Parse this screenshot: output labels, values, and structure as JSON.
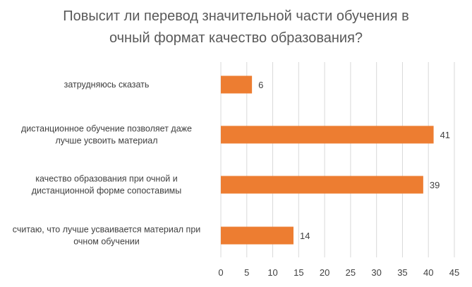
{
  "chart_data": {
    "type": "bar",
    "orientation": "horizontal",
    "title_lines": [
      "Повысит ли перевод значительной части обучения в",
      "очный формат качество образования?"
    ],
    "categories": [
      [
        "затрудняюсь сказать"
      ],
      [
        "дистанционное обучение позволяет даже",
        "лучше усвоить материал"
      ],
      [
        "качество образования при очной и",
        "дистанционной форме сопоставимы"
      ],
      [
        "считаю, что лучше усваивается материал при",
        "очном обучении"
      ]
    ],
    "values": [
      6,
      41,
      39,
      14
    ],
    "data_labels": [
      "6",
      "41",
      "39",
      "14"
    ],
    "xlim": [
      0,
      45
    ],
    "xticks": [
      0,
      5,
      10,
      15,
      20,
      25,
      30,
      35,
      40,
      45
    ],
    "xtick_labels": [
      "0",
      "5",
      "10",
      "15",
      "20",
      "25",
      "30",
      "35",
      "40",
      "45"
    ],
    "grid": "vertical",
    "legend": "none",
    "bar_color": "#ED7D31",
    "grid_color": "#D9D9D9"
  }
}
